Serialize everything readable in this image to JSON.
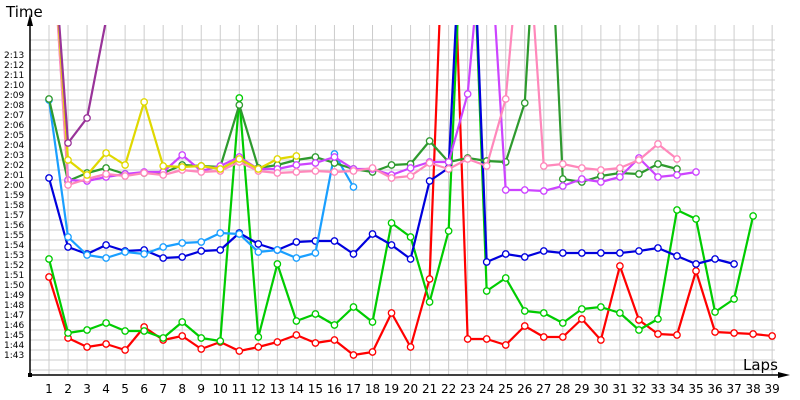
{
  "chart_data": {
    "type": "line",
    "title": "",
    "xlabel": "Laps",
    "ylabel": "Time",
    "x": [
      1,
      2,
      3,
      4,
      5,
      6,
      7,
      8,
      9,
      10,
      11,
      12,
      13,
      14,
      15,
      16,
      17,
      18,
      19,
      20,
      21,
      22,
      23,
      24,
      25,
      26,
      27,
      28,
      29,
      30,
      31,
      32,
      33,
      34,
      35,
      36,
      37,
      38,
      39
    ],
    "y_tick_labels": [
      "1:43",
      "1:44",
      "1:45",
      "1:46",
      "1:47",
      "1:48",
      "1:49",
      "1:50",
      "1:51",
      "1:52",
      "1:53",
      "1:54",
      "1:55",
      "1:56",
      "1:57",
      "1:58",
      "1:59",
      "2:00",
      "2:01",
      "2:02",
      "2:03",
      "2:04",
      "2:05",
      "2:06",
      "2:07",
      "2:08",
      "2:09",
      "2:10",
      "2:11",
      "2:12",
      "2:13"
    ],
    "ylim_seconds": [
      101,
      135
    ],
    "grid": true,
    "legend": "none",
    "note": "values in seconds; null = not shown; values >135 are off the top of the plot",
    "series": [
      {
        "name": "red",
        "color": "#ff0000",
        "values": [
          110.8,
          104.7,
          103.8,
          104.1,
          103.5,
          105.8,
          104.5,
          104.9,
          103.6,
          104.3,
          103.4,
          103.8,
          104.3,
          105.0,
          104.2,
          104.5,
          103.0,
          103.3,
          107.2,
          103.8,
          110.6,
          160,
          104.6,
          104.6,
          104.0,
          105.9,
          104.8,
          104.8,
          106.6,
          104.5,
          111.9,
          106.5,
          105.1,
          105.0,
          111.4,
          105.3,
          105.2,
          105.1,
          104.9
        ]
      },
      {
        "name": "green",
        "color": "#00cc00",
        "values": [
          112.6,
          105.2,
          105.5,
          106.2,
          105.4,
          105.4,
          104.7,
          106.3,
          104.7,
          104.4,
          128.7,
          104.8,
          112.1,
          106.4,
          107.1,
          106.0,
          107.8,
          106.3,
          116.2,
          114.8,
          108.3,
          115.4,
          160,
          109.4,
          110.7,
          107.4,
          107.2,
          106.2,
          107.6,
          107.8,
          107.2,
          105.5,
          106.6,
          117.5,
          116.6,
          107.3,
          108.6,
          116.9,
          null
        ]
      },
      {
        "name": "blue",
        "color": "#0000dd",
        "values": [
          120.7,
          113.8,
          113.1,
          114.0,
          113.4,
          113.5,
          112.7,
          112.8,
          113.4,
          113.5,
          115.2,
          114.1,
          113.5,
          114.3,
          114.4,
          114.4,
          113.1,
          115.1,
          114.0,
          112.6,
          120.4,
          121.7,
          160,
          112.3,
          113.1,
          112.8,
          113.4,
          113.2,
          113.2,
          113.2,
          113.2,
          113.4,
          113.7,
          112.9,
          112.1,
          112.6,
          112.1,
          null,
          null
        ]
      },
      {
        "name": "light-blue",
        "color": "#1a9fff",
        "values": [
          128.5,
          114.8,
          113.0,
          112.7,
          113.3,
          113.1,
          113.8,
          114.2,
          114.3,
          115.2,
          115.1,
          113.3,
          113.5,
          112.7,
          113.2,
          123.1,
          119.8,
          null,
          null,
          null,
          null,
          null,
          null,
          null,
          null,
          null,
          null,
          null,
          null,
          null,
          null,
          null,
          null,
          null,
          null,
          null,
          null,
          null,
          null
        ]
      },
      {
        "name": "dark-green",
        "color": "#2e9a2e",
        "values": [
          128.6,
          120.4,
          121.2,
          121.7,
          121.1,
          121.2,
          121.2,
          122.0,
          121.9,
          121.8,
          128.0,
          121.7,
          122.0,
          122.5,
          122.8,
          122.2,
          121.6,
          121.3,
          122.0,
          122.1,
          124.4,
          122.3,
          122.7,
          122.4,
          122.3,
          128.2,
          160,
          120.6,
          120.3,
          120.9,
          121.2,
          121.1,
          122.1,
          121.6,
          null,
          null,
          null,
          null,
          null
        ]
      },
      {
        "name": "violet",
        "color": "#cc44ff",
        "values": [
          150,
          120.5,
          120.4,
          120.8,
          121.1,
          121.3,
          121.3,
          123.0,
          121.4,
          121.9,
          122.8,
          121.6,
          121.6,
          122.0,
          122.2,
          122.8,
          121.6,
          121.6,
          121.0,
          121.7,
          122.3,
          122.3,
          129.1,
          150,
          119.5,
          119.5,
          119.4,
          119.9,
          120.6,
          120.3,
          120.8,
          122.7,
          120.8,
          121.0,
          121.3,
          null,
          null,
          null,
          null
        ]
      },
      {
        "name": "pink",
        "color": "#ff88bb",
        "values": [
          150,
          120.0,
          120.6,
          121.1,
          120.9,
          121.2,
          121.0,
          121.5,
          121.3,
          121.4,
          122.3,
          121.4,
          121.2,
          121.3,
          121.4,
          121.3,
          121.4,
          121.7,
          120.7,
          120.9,
          122.2,
          121.6,
          122.6,
          121.9,
          128.6,
          150,
          121.9,
          122.1,
          121.7,
          121.5,
          121.7,
          122.5,
          124.1,
          122.6,
          null,
          null,
          null,
          null,
          null
        ]
      },
      {
        "name": "yellow",
        "color": "#e0d800",
        "values": [
          150,
          122.5,
          121.0,
          123.2,
          122.0,
          128.3,
          121.9,
          121.8,
          121.9,
          121.6,
          122.6,
          121.6,
          122.6,
          122.9,
          null,
          null,
          null,
          null,
          null,
          null,
          null,
          null,
          null,
          null,
          null,
          null,
          null,
          null,
          null,
          null,
          null,
          null,
          null,
          null,
          null,
          null,
          null,
          null,
          null
        ]
      },
      {
        "name": "purple",
        "color": "#993399",
        "values": [
          150,
          124.2,
          126.7,
          136.5,
          null,
          null,
          null,
          null,
          null,
          null,
          null,
          null,
          null,
          null,
          null,
          null,
          null,
          null,
          null,
          null,
          null,
          null,
          null,
          null,
          null,
          null,
          null,
          null,
          null,
          null,
          null,
          null,
          null,
          null,
          null,
          null,
          null,
          null,
          null
        ]
      }
    ]
  },
  "axes": {
    "y_title": "Time",
    "x_title": "Laps"
  }
}
